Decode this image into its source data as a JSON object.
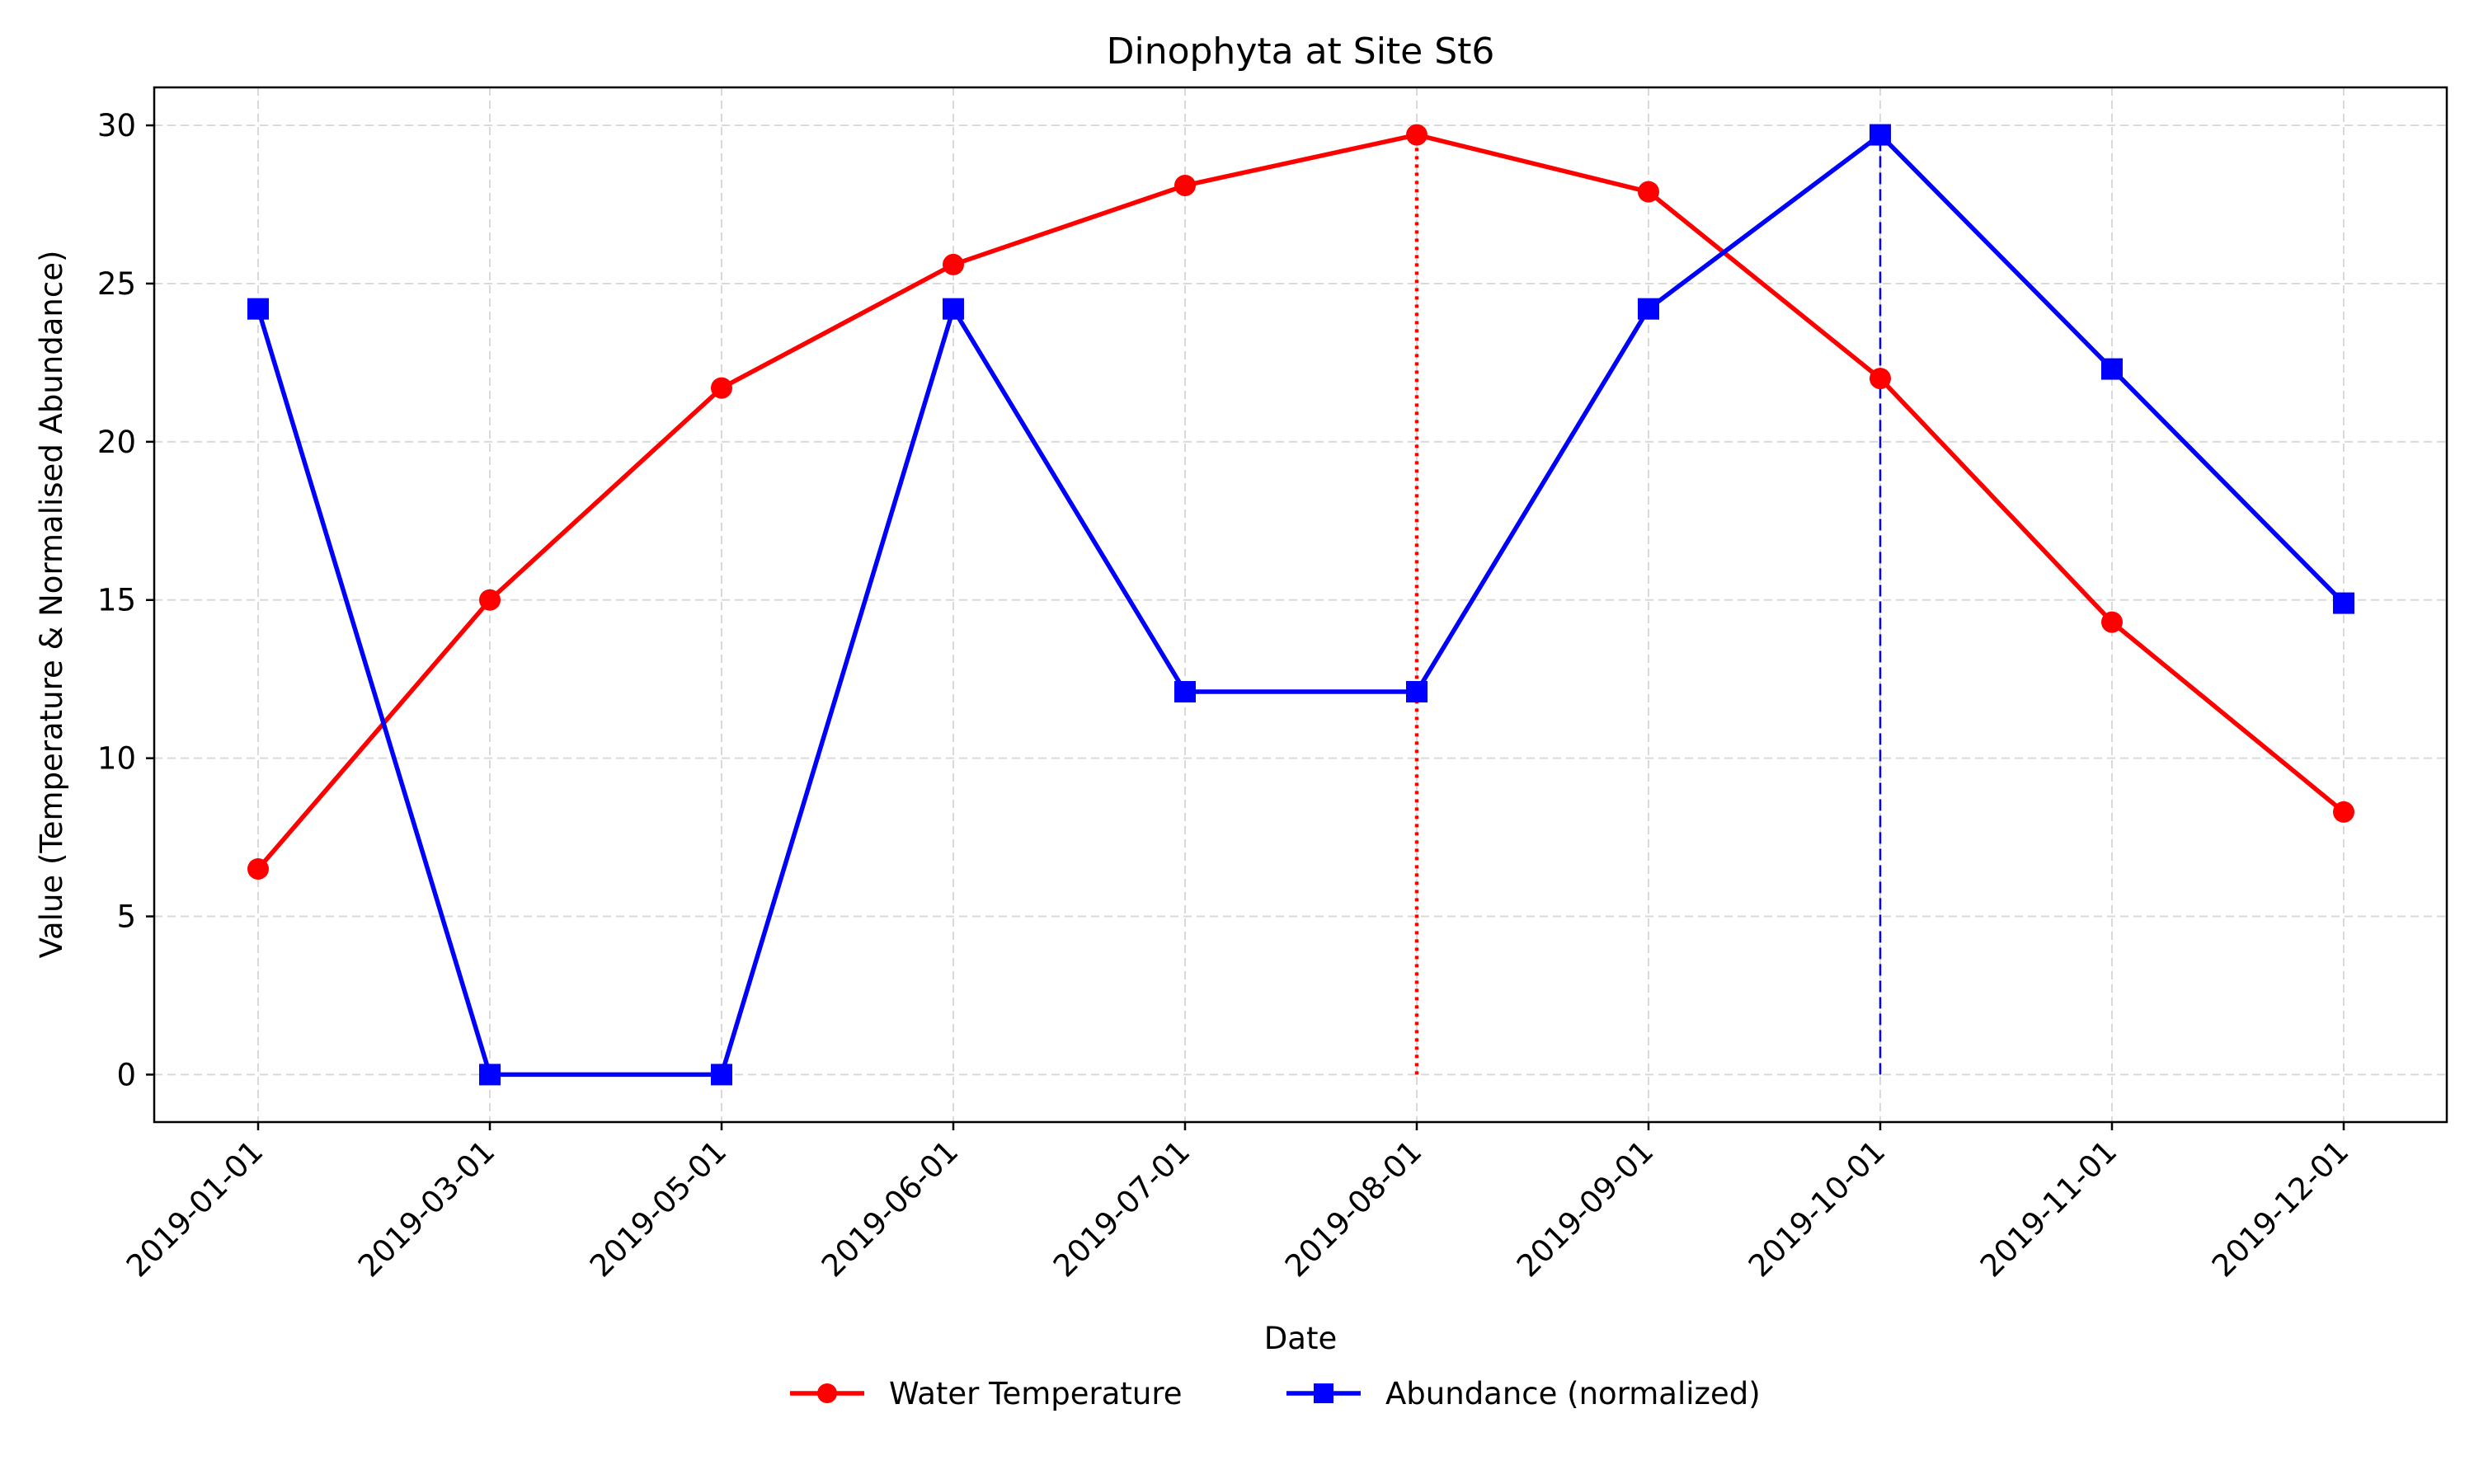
{
  "chart_data": {
    "type": "line",
    "title": "Dinophyta at Site St6",
    "xlabel": "Date",
    "ylabel": "Value (Temperature & Normalised Abundance)",
    "categories": [
      "2019-01-01",
      "2019-03-01",
      "2019-05-01",
      "2019-06-01",
      "2019-07-01",
      "2019-08-01",
      "2019-09-01",
      "2019-10-01",
      "2019-11-01",
      "2019-12-01"
    ],
    "series": [
      {
        "name": "Water Temperature",
        "color": "#ff0000",
        "marker": "circle",
        "values": [
          6.5,
          15.0,
          21.7,
          25.6,
          28.1,
          29.7,
          27.9,
          22.0,
          14.3,
          8.3
        ]
      },
      {
        "name": "Abundance (normalized)",
        "color": "#0000ff",
        "marker": "square",
        "values": [
          24.2,
          0.0,
          0.0,
          24.2,
          12.1,
          12.1,
          24.2,
          29.7,
          22.3,
          14.9
        ]
      }
    ],
    "reference_lines": [
      {
        "x": "2019-08-01",
        "from": 0,
        "to": 29.7,
        "color": "#ff0000",
        "style": "dotted"
      },
      {
        "x": "2019-10-01",
        "from": 0,
        "to": 29.7,
        "color": "#0000ff",
        "style": "dashed"
      }
    ],
    "yticks": [
      0,
      5,
      10,
      15,
      20,
      25,
      30
    ],
    "ylim": [
      -1.5,
      31.2
    ],
    "grid": true,
    "legend_position": "bottom-center"
  }
}
